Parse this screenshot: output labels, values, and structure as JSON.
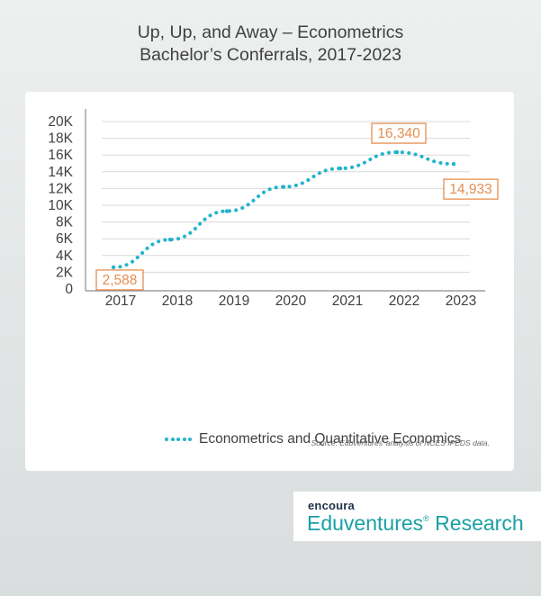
{
  "title_lines": [
    "Up, Up, and Away – Econometrics",
    "Bachelor’s Conferrals, 2017-2023"
  ],
  "colors": {
    "series": "#22b3cf",
    "callout": "#e58e4f",
    "brand_teal": "#1aa0a4",
    "brand_navy": "#1d3048"
  },
  "chart_data": {
    "type": "line",
    "title": "Up, Up, and Away – Econometrics Bachelor’s Conferrals, 2017-2023",
    "x": [
      "2017",
      "2018",
      "2019",
      "2020",
      "2021",
      "2022",
      "2023"
    ],
    "ylim": [
      0,
      20000
    ],
    "yticks": [
      0,
      2000,
      4000,
      6000,
      8000,
      10000,
      12000,
      14000,
      16000,
      18000,
      20000
    ],
    "ytick_labels": [
      "0",
      "2K",
      "4K",
      "6K",
      "8K",
      "10K",
      "12K",
      "14K",
      "16K",
      "18K",
      "20K"
    ],
    "grid": true,
    "line_style": "dotted",
    "series": [
      {
        "name": "Econometrics and Quantitative Economics",
        "values": [
          2588,
          5900,
          9300,
          12200,
          14400,
          16340,
          14933
        ]
      }
    ],
    "data_labels": [
      {
        "index": 0,
        "text": "2,588"
      },
      {
        "index": 5,
        "text": "16,340"
      },
      {
        "index": 6,
        "text": "14,933"
      }
    ],
    "legend_position": "bottom",
    "source": "Source: Eduventures’ analysis of NCES IPEDS data."
  },
  "brand": {
    "top": "encoura",
    "main": "Eduventures",
    "mark": "®",
    "suffix": " Research"
  }
}
